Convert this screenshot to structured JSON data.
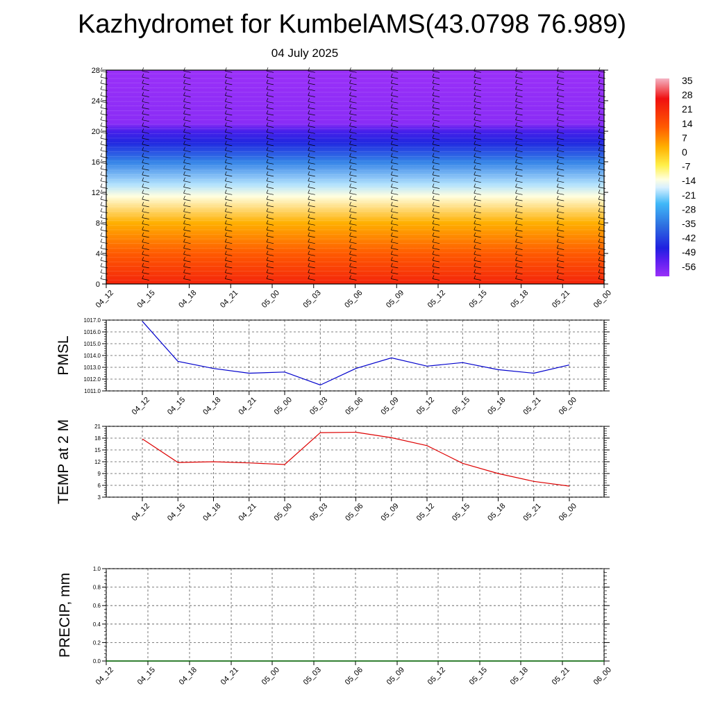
{
  "title": "Kazhydromet for KumbelAMS(43.0798 76.989)",
  "subtitle": "04 July 2025",
  "colors": {
    "pmsl_line": "#0000cc",
    "temp_line": "#dd0000",
    "precip_line": "#006600",
    "grid": "#555555"
  },
  "colorbar": {
    "labels": [
      "35",
      "28",
      "21",
      "14",
      "7",
      "0",
      "-7",
      "-14",
      "-21",
      "-28",
      "-35",
      "-42",
      "-49",
      "-56"
    ],
    "stops": [
      {
        "v": 38,
        "c": "#f4b4c4"
      },
      {
        "v": 28,
        "c": "#f01010"
      },
      {
        "v": 14,
        "c": "#ff5a00"
      },
      {
        "v": 4,
        "c": "#ffb000"
      },
      {
        "v": -5,
        "c": "#fff04a"
      },
      {
        "v": -12,
        "c": "#ffffe0"
      },
      {
        "v": -16,
        "c": "#d8f0ff"
      },
      {
        "v": -24,
        "c": "#40b8f8"
      },
      {
        "v": -35,
        "c": "#2e6ee0"
      },
      {
        "v": -46,
        "c": "#2020e0"
      },
      {
        "v": -52,
        "c": "#5a1ef0"
      },
      {
        "v": -60,
        "c": "#9a30f8"
      }
    ]
  },
  "chart_data": [
    {
      "type": "heatmap",
      "name_key": "temperature-cross-section",
      "x_ticks": [
        "04_12",
        "04_15",
        "04_18",
        "04_21",
        "05_00",
        "05_03",
        "05_06",
        "05_09",
        "05_12",
        "05_15",
        "05_18",
        "05_21",
        "06_00"
      ],
      "y_ticks": [
        "0",
        "4",
        "8",
        "12",
        "16",
        "20",
        "24",
        "28"
      ],
      "ylim": [
        0,
        28
      ],
      "levels_temp_profile": [
        {
          "y": 0,
          "t": 24
        },
        {
          "y": 4,
          "t": 14
        },
        {
          "y": 8,
          "t": 4
        },
        {
          "y": 11.5,
          "t": -12
        },
        {
          "y": 13,
          "t": -18
        },
        {
          "y": 16,
          "t": -32
        },
        {
          "y": 18.5,
          "t": -45
        },
        {
          "y": 20,
          "t": -50
        },
        {
          "y": 21,
          "t": -58
        },
        {
          "y": 28,
          "t": -60
        }
      ]
    },
    {
      "type": "line",
      "name_key": "pmsl",
      "ylabel": "PMSL",
      "x": [
        "04_12",
        "04_15",
        "04_18",
        "04_21",
        "05_00",
        "05_03",
        "05_06",
        "05_09",
        "05_12",
        "05_15",
        "05_18",
        "05_21",
        "06_00"
      ],
      "values": [
        1016.9,
        1013.5,
        1012.9,
        1012.5,
        1012.6,
        1011.5,
        1012.9,
        1013.8,
        1013.1,
        1013.4,
        1012.8,
        1012.5,
        1013.2
      ],
      "ylim": [
        1011.0,
        1017.0
      ],
      "y_ticks": [
        "1011.0",
        "1012.0",
        "1013.0",
        "1014.0",
        "1015.0",
        "1016.0",
        "1017.0"
      ]
    },
    {
      "type": "line",
      "name_key": "temp2m",
      "ylabel": "TEMP at 2 M",
      "x": [
        "04_12",
        "04_15",
        "04_18",
        "04_21",
        "05_00",
        "05_03",
        "05_06",
        "05_09",
        "05_12",
        "05_15",
        "05_18",
        "05_21",
        "06_00"
      ],
      "values": [
        17.8,
        11.8,
        12.0,
        11.7,
        11.3,
        19.4,
        19.5,
        18.1,
        16.1,
        11.6,
        9.0,
        7.0,
        5.8
      ],
      "ylim": [
        3,
        21
      ],
      "y_ticks": [
        "3",
        "6",
        "9",
        "12",
        "15",
        "18",
        "21"
      ]
    },
    {
      "type": "line",
      "name_key": "precip",
      "ylabel": "PRECIP, mm",
      "x": [
        "04_12",
        "04_15",
        "04_18",
        "04_21",
        "05_00",
        "05_03",
        "05_06",
        "05_09",
        "05_12",
        "05_15",
        "05_18",
        "05_21",
        "06_00"
      ],
      "values": [
        0,
        0,
        0,
        0,
        0,
        0,
        0,
        0,
        0,
        0,
        0,
        0,
        0
      ],
      "ylim": [
        0.0,
        1.0
      ],
      "y_ticks": [
        "0.0",
        "0.2",
        "0.4",
        "0.6",
        "0.8",
        "1.0"
      ]
    }
  ]
}
